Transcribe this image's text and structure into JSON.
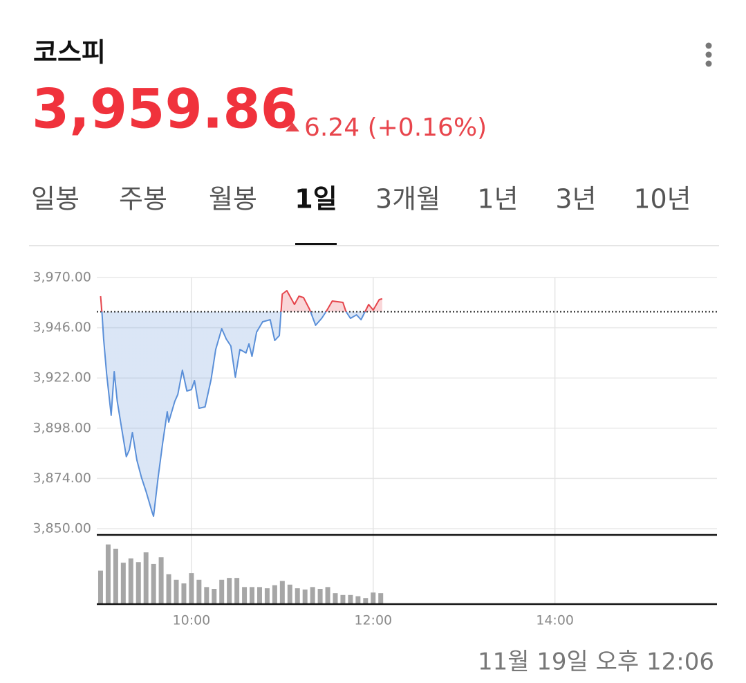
{
  "header": {
    "title": "코스피",
    "price": "3,959.86",
    "change": "6.24 (+0.16%)"
  },
  "tabs": {
    "items": [
      "일봉",
      "주봉",
      "월봉",
      "1일",
      "3개월",
      "1년",
      "3년",
      "10년"
    ],
    "selected": 3
  },
  "chart_data": {
    "type": "line",
    "x": [
      540,
      541,
      542,
      544,
      547,
      549,
      551,
      554,
      557,
      559,
      561,
      564,
      567,
      570,
      574,
      575,
      578,
      581,
      584,
      585,
      589,
      591,
      594,
      597,
      600,
      602,
      605,
      609,
      613,
      616,
      620,
      623,
      626,
      629,
      632,
      636,
      638,
      640,
      643,
      647,
      652,
      655,
      658,
      660,
      663,
      668,
      671,
      674,
      678,
      682,
      686,
      689,
      693,
      700,
      702,
      705,
      709,
      712,
      717,
      720,
      724,
      726
    ],
    "values": [
      3961.08,
      3952.15,
      3940.58,
      3924.05,
      3904.22,
      3925.05,
      3910.83,
      3897.61,
      3884.38,
      3887.69,
      3895.95,
      3882.73,
      3874.46,
      3867.85,
      3857.93,
      3855.95,
      3874.46,
      3890.99,
      3905.87,
      3900.91,
      3910.83,
      3914.14,
      3925.71,
      3915.79,
      3916.45,
      3920.75,
      3907.52,
      3908.19,
      3921.41,
      3935.63,
      3945.54,
      3940.58,
      3937.28,
      3922.4,
      3935.63,
      3933.97,
      3938.27,
      3932.32,
      3943.89,
      3948.85,
      3949.84,
      3939.92,
      3942.24,
      3962.07,
      3963.73,
      3957.11,
      3961.08,
      3960.42,
      3954.8,
      3947.2,
      3950.5,
      3953.81,
      3958.77,
      3958.11,
      3953.81,
      3950.5,
      3952.16,
      3949.84,
      3957.11,
      3954.47,
      3959.43,
      3959.86
    ],
    "xlim": [
      537.5,
      947
    ],
    "xticks": [
      {
        "value": 600,
        "label": "10:00"
      },
      {
        "value": 720,
        "label": "12:00"
      },
      {
        "value": 840,
        "label": "14:00"
      }
    ],
    "ylim": [
      3850,
      3970
    ],
    "yticks": [
      {
        "value": 3970,
        "label": "3,970.00"
      },
      {
        "value": 3946,
        "label": "3,946.00"
      },
      {
        "value": 3922,
        "label": "3,922.00"
      },
      {
        "value": 3898,
        "label": "3,898.00"
      },
      {
        "value": 3874,
        "label": "3,874.00"
      },
      {
        "value": 3850,
        "label": "3,850.00"
      }
    ],
    "grid": true,
    "reference_line": 3953.62,
    "up_color": "#e5454c",
    "down_color": "#5a8fd8",
    "volume": {
      "type": "bar",
      "x": [
        540,
        545,
        550,
        555,
        560,
        565,
        570,
        575,
        580,
        585,
        590,
        595,
        600,
        605,
        610,
        615,
        620,
        625,
        630,
        635,
        640,
        645,
        650,
        655,
        660,
        665,
        670,
        675,
        680,
        685,
        690,
        695,
        700,
        705,
        710,
        715,
        720,
        725
      ],
      "values": [
        55,
        98,
        91,
        68,
        75,
        69,
        85,
        66,
        77,
        49,
        40,
        34,
        51,
        40,
        28,
        25,
        40,
        43,
        43,
        28,
        28,
        28,
        26,
        31,
        38,
        32,
        26,
        24,
        28,
        25,
        28,
        18,
        15,
        15,
        13,
        10,
        19,
        18
      ],
      "ylim": [
        0,
        100
      ],
      "color": "#a6a6a6"
    }
  },
  "timestamp": "11월 19일 오후 12:06"
}
